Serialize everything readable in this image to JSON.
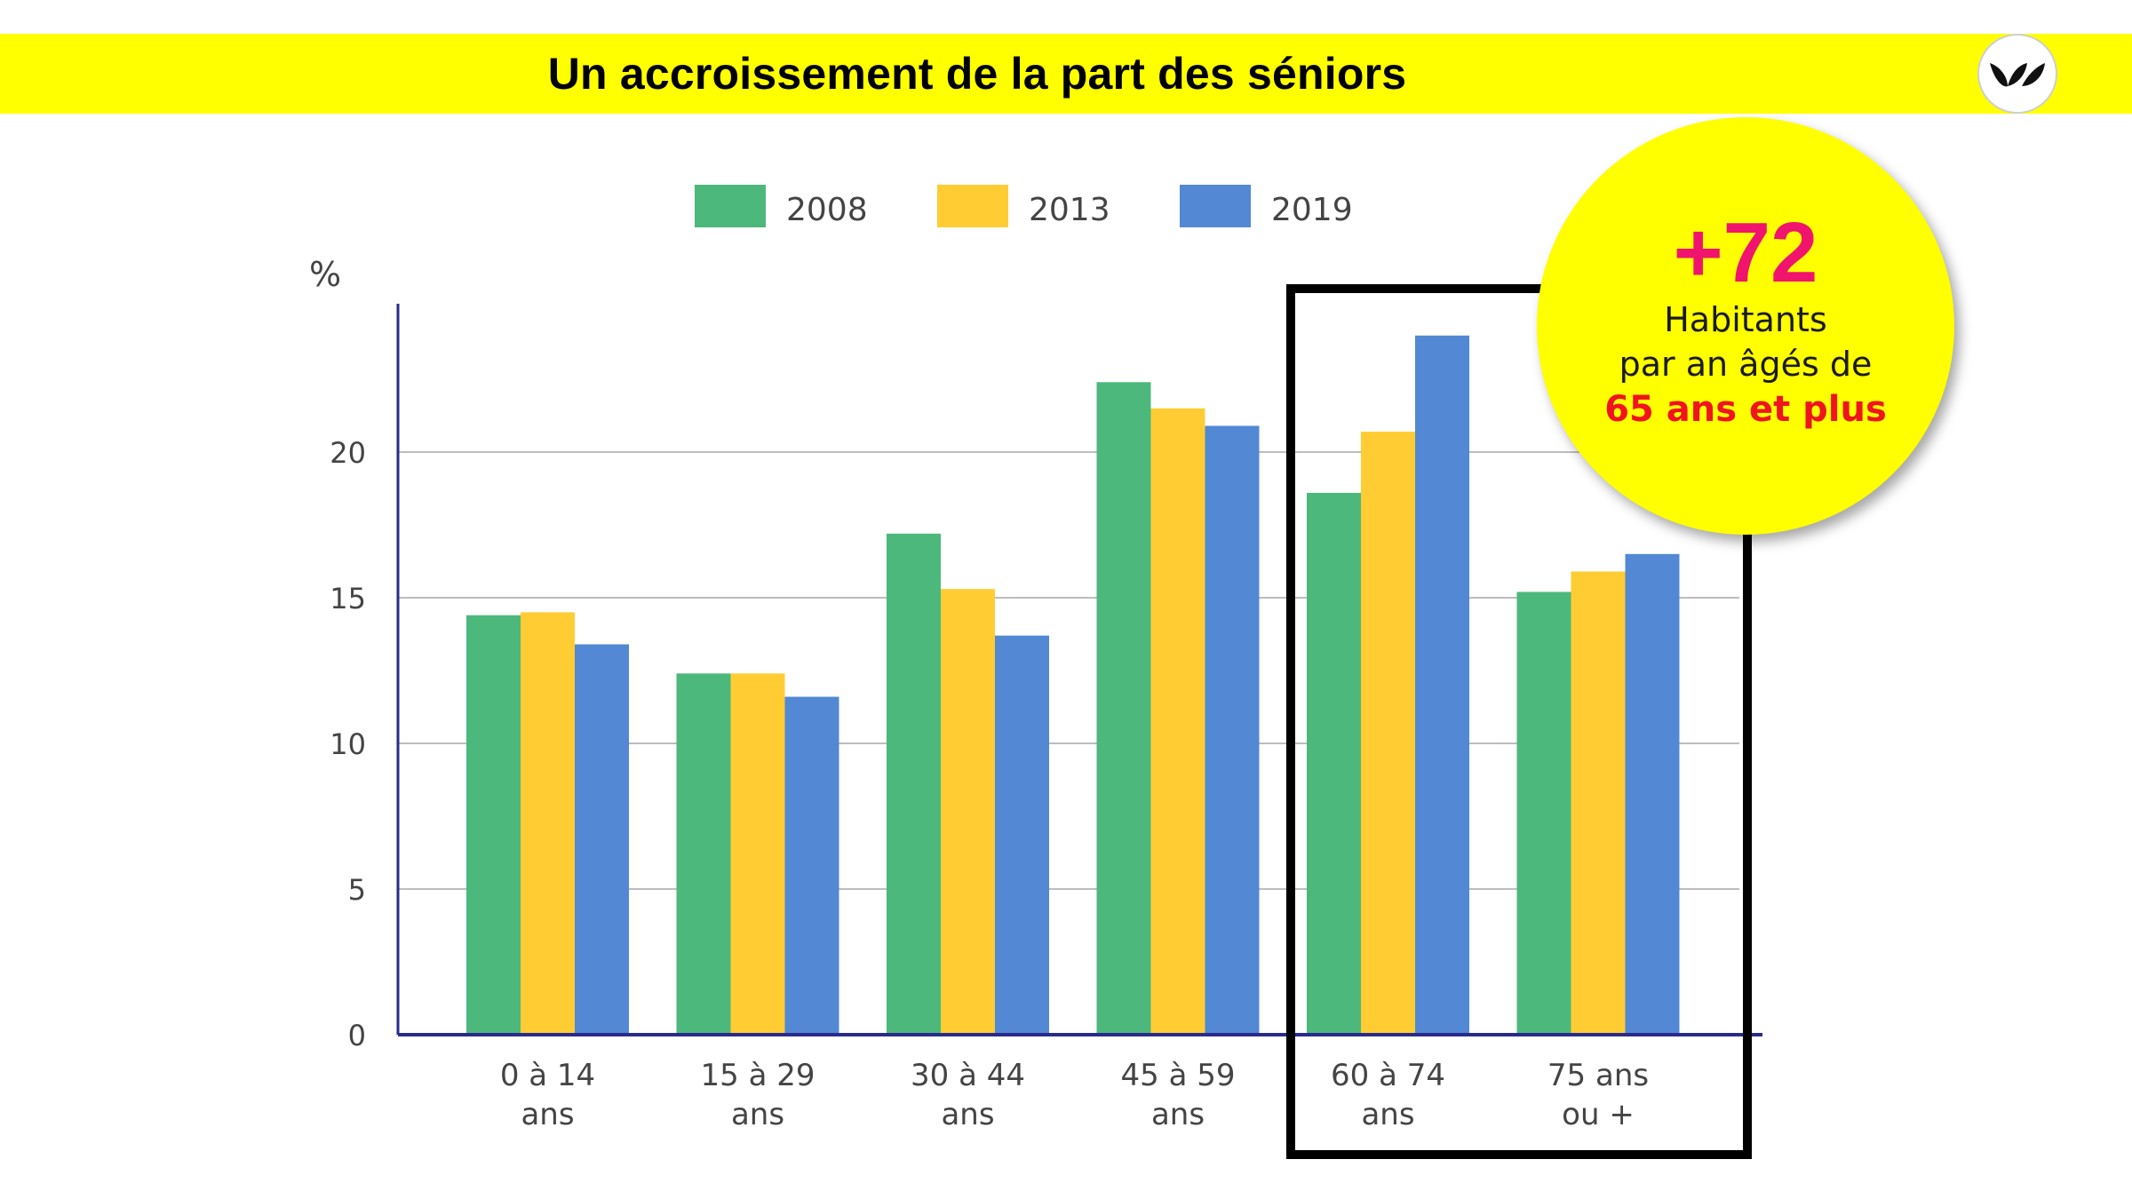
{
  "header": {
    "title": "Un accroissement de la part des séniors",
    "logo_icon": "leaf-logo-icon"
  },
  "callout": {
    "value": "+72",
    "line1": "Habitants",
    "line2": "par an âgés de",
    "line3": "65 ans et plus",
    "bg_color": "#ffff00",
    "value_color": "#f0146e",
    "line3_color": "#f0141e"
  },
  "chart_data": {
    "type": "bar",
    "ylabel": "%",
    "ylim": [
      0,
      25
    ],
    "yticks": [
      0,
      5,
      10,
      15,
      20
    ],
    "grid": true,
    "legend_position": "top",
    "categories": [
      [
        "0 à 14",
        "ans"
      ],
      [
        "15 à 29",
        "ans"
      ],
      [
        "30 à 44",
        "ans"
      ],
      [
        "45 à 59",
        "ans"
      ],
      [
        "60 à 74",
        "ans"
      ],
      [
        "75 ans",
        "ou +"
      ]
    ],
    "series": [
      {
        "name": "2008",
        "color": "#4cb87c",
        "values": [
          14.4,
          12.4,
          17.2,
          22.4,
          18.6,
          15.2
        ]
      },
      {
        "name": "2013",
        "color": "#ffcd33",
        "values": [
          14.5,
          12.4,
          15.3,
          21.5,
          20.7,
          15.9
        ]
      },
      {
        "name": "2019",
        "color": "#5288d4",
        "values": [
          13.4,
          11.6,
          13.7,
          20.9,
          24.0,
          16.5
        ]
      }
    ],
    "highlight_box": {
      "categories": [
        "60 à 74",
        "75 ans"
      ],
      "color": "#000000"
    }
  }
}
